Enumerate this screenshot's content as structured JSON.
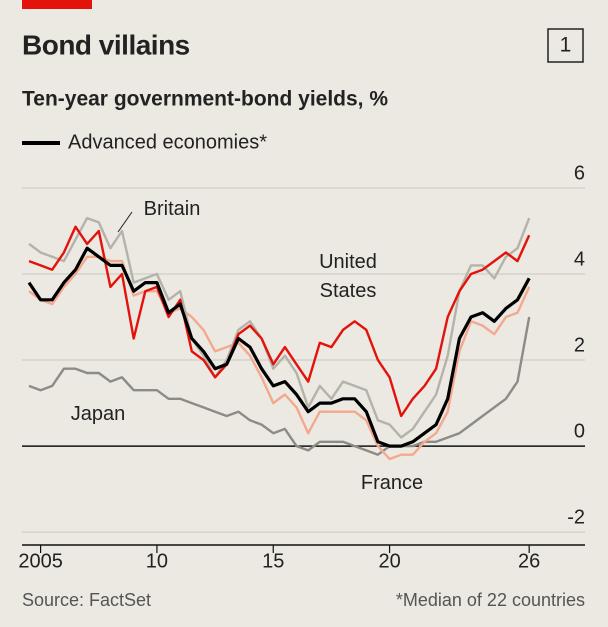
{
  "chart_data": {
    "type": "line",
    "number": "1",
    "title": "Bond villains",
    "subtitle": "Ten-year government-bond yields, %",
    "source": "Source: FactSet",
    "footnote": "*Median of 22 countries",
    "x": [
      2004.5,
      2005,
      2005.5,
      2006,
      2006.5,
      2007,
      2007.5,
      2008,
      2008.5,
      2009,
      2009.5,
      2010,
      2010.5,
      2011,
      2011.5,
      2012,
      2012.5,
      2013,
      2013.5,
      2014,
      2014.5,
      2015,
      2015.5,
      2016,
      2016.5,
      2017,
      2017.5,
      2018,
      2018.5,
      2019,
      2019.5,
      2020,
      2020.5,
      2021,
      2021.5,
      2022,
      2022.5,
      2023,
      2023.5,
      2024,
      2024.5,
      2025,
      2025.5,
      2026
    ],
    "series": [
      {
        "name": "Japan",
        "color": "#8c8c86",
        "label_style": "direct",
        "values": [
          1.4,
          1.3,
          1.4,
          1.8,
          1.8,
          1.7,
          1.7,
          1.5,
          1.6,
          1.3,
          1.3,
          1.3,
          1.1,
          1.1,
          1.0,
          0.9,
          0.8,
          0.7,
          0.8,
          0.6,
          0.5,
          0.3,
          0.4,
          0.0,
          -0.1,
          0.1,
          0.1,
          0.1,
          0.0,
          -0.1,
          -0.2,
          0.0,
          0.0,
          0.0,
          0.1,
          0.1,
          0.2,
          0.3,
          0.5,
          0.7,
          0.9,
          1.1,
          1.5,
          3.0
        ]
      },
      {
        "name": "France",
        "color": "#f4a88e",
        "label_style": "direct",
        "values": [
          3.6,
          3.4,
          3.3,
          3.7,
          4.0,
          4.4,
          4.4,
          4.3,
          4.3,
          3.5,
          3.6,
          3.6,
          3.1,
          3.2,
          3.0,
          2.7,
          2.2,
          2.3,
          2.4,
          2.1,
          1.6,
          1.0,
          1.2,
          0.9,
          0.3,
          0.8,
          0.8,
          0.8,
          0.8,
          0.6,
          0.0,
          -0.3,
          -0.2,
          -0.2,
          0.1,
          0.3,
          0.8,
          2.2,
          2.9,
          2.8,
          2.6,
          3.0,
          3.1,
          3.7
        ]
      },
      {
        "name": "Britain",
        "color": "#b3b3ab",
        "label_style": "direct",
        "values": [
          4.7,
          4.5,
          4.4,
          4.3,
          4.8,
          5.3,
          5.2,
          4.6,
          5.0,
          3.8,
          3.9,
          4.0,
          3.4,
          3.6,
          2.5,
          2.1,
          1.6,
          2.0,
          2.7,
          2.9,
          2.5,
          1.8,
          2.1,
          1.7,
          0.9,
          1.4,
          1.1,
          1.5,
          1.4,
          1.3,
          0.6,
          0.5,
          0.2,
          0.4,
          0.8,
          1.2,
          2.1,
          3.6,
          4.2,
          4.2,
          3.9,
          4.4,
          4.6,
          5.3
        ]
      },
      {
        "name": "United States",
        "color": "#e3120b",
        "label_style": "direct",
        "values": [
          4.3,
          4.2,
          4.1,
          4.5,
          5.1,
          4.7,
          5.0,
          3.7,
          4.0,
          2.5,
          3.6,
          3.7,
          3.0,
          3.4,
          2.2,
          2.0,
          1.6,
          1.9,
          2.6,
          2.8,
          2.5,
          1.9,
          2.3,
          1.9,
          1.5,
          2.4,
          2.3,
          2.7,
          2.9,
          2.7,
          2.0,
          1.6,
          0.7,
          1.1,
          1.4,
          1.8,
          3.0,
          3.6,
          4.0,
          4.1,
          4.3,
          4.5,
          4.3,
          4.9
        ]
      },
      {
        "name": "Advanced economies*",
        "color": "#000000",
        "label_style": "legend",
        "values": [
          3.8,
          3.4,
          3.4,
          3.8,
          4.1,
          4.6,
          4.4,
          4.2,
          4.2,
          3.6,
          3.8,
          3.8,
          3.1,
          3.3,
          2.5,
          2.2,
          1.8,
          1.9,
          2.5,
          2.3,
          1.8,
          1.4,
          1.5,
          1.2,
          0.8,
          1.0,
          1.0,
          1.1,
          1.1,
          0.8,
          0.1,
          0.0,
          0.0,
          0.1,
          0.3,
          0.5,
          1.1,
          2.5,
          3.0,
          3.1,
          2.9,
          3.2,
          3.4,
          3.9
        ]
      }
    ],
    "xlim": [
      2004.2,
      2028.4
    ],
    "xticks": [
      2005,
      {
        "value": 2010,
        "label": "10"
      },
      {
        "value": 2015,
        "label": "15"
      },
      {
        "value": 2020,
        "label": "20"
      },
      {
        "value": 2026,
        "label": "26"
      }
    ],
    "ylim": [
      -2.3,
      6
    ],
    "yticks": [
      -2,
      0,
      2,
      4,
      6
    ],
    "grid": true
  }
}
